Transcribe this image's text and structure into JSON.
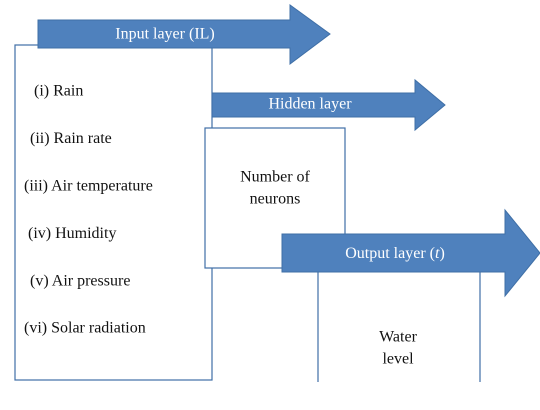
{
  "input_layer": {
    "label": "Input layer (IL)",
    "items": [
      "(i) Rain",
      "(ii) Rain rate",
      "(iii) Air temperature",
      "(iv) Humidity",
      "(v) Air pressure",
      "(vi) Solar radiation"
    ]
  },
  "hidden_layer": {
    "label": "Hidden layer",
    "content": [
      "Number of",
      "neurons"
    ]
  },
  "output_layer": {
    "label_start": "Output layer (",
    "label_symbol": "t",
    "label_end": ")",
    "content": [
      "Water",
      "level"
    ]
  }
}
